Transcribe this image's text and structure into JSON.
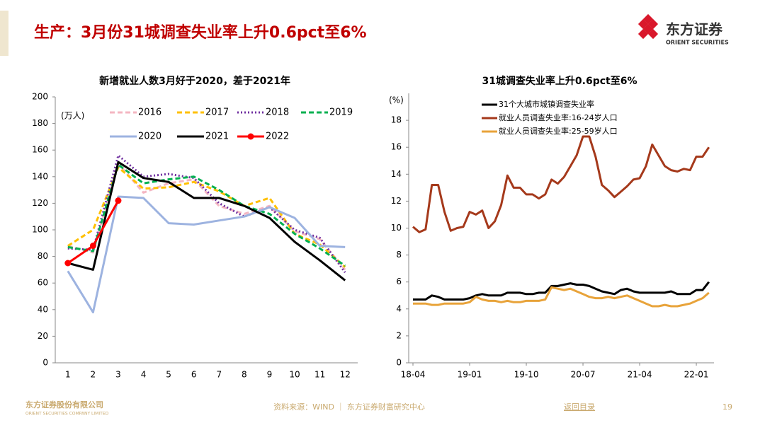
{
  "header": {
    "title": "生产：3月份31城调查失业率上升0.6pct至6%",
    "logo_name": "东方证券",
    "logo_subtitle": "ORIENT SECURITIES"
  },
  "chart_data": [
    {
      "type": "line",
      "title": "新增就业人数3月好于2020，差于2021年",
      "annotation": "(万人)",
      "categories": [
        1,
        2,
        3,
        4,
        5,
        6,
        7,
        8,
        9,
        10,
        11,
        12
      ],
      "ylim": [
        0,
        200
      ],
      "yticks": [
        0,
        20,
        40,
        60,
        80,
        100,
        120,
        140,
        160,
        180,
        200
      ],
      "series": [
        {
          "name": "2016",
          "color": "#f4b6c2",
          "line_style": "dashed",
          "values": [
            88,
            83,
            150,
            128,
            135,
            138,
            118,
            112,
            118,
            99,
            93,
            70
          ]
        },
        {
          "name": "2017",
          "color": "#ffc000",
          "line_style": "dashed",
          "values": [
            88,
            100,
            147,
            131,
            132,
            136,
            129,
            118,
            124,
            97,
            89,
            72
          ]
        },
        {
          "name": "2018",
          "color": "#7030a0",
          "line_style": "dotted",
          "values": [
            86,
            85,
            156,
            140,
            142,
            139,
            120,
            110,
            117,
            100,
            94,
            68
          ]
        },
        {
          "name": "2019",
          "color": "#00b050",
          "line_style": "dashed",
          "values": [
            87,
            84,
            149,
            135,
            138,
            140,
            130,
            118,
            112,
            97,
            86,
            73
          ]
        },
        {
          "name": "2020",
          "color": "#9db3e0",
          "line_style": "solid",
          "values": [
            69,
            38,
            125,
            124,
            105,
            104,
            107,
            110,
            117,
            109,
            88,
            87
          ]
        },
        {
          "name": "2021",
          "color": "#000000",
          "line_style": "solid",
          "values": [
            75,
            70,
            151,
            139,
            136,
            124,
            124,
            118,
            109,
            91,
            77,
            62
          ]
        },
        {
          "name": "2022",
          "color": "#ff0000",
          "line_style": "solid",
          "marker": true,
          "values": [
            75,
            88,
            122,
            null,
            null,
            null,
            null,
            null,
            null,
            null,
            null,
            null
          ]
        }
      ]
    },
    {
      "type": "line",
      "title": "31城调查失业率上升0.6pct至6%",
      "annotation": "(%)",
      "categories": [
        "18-04",
        null,
        null,
        null,
        null,
        null,
        null,
        null,
        null,
        "19-01",
        null,
        null,
        null,
        null,
        null,
        null,
        null,
        null,
        "19-10",
        null,
        null,
        null,
        null,
        null,
        null,
        null,
        null,
        "20-07",
        null,
        null,
        null,
        null,
        null,
        null,
        null,
        null,
        "21-04",
        null,
        null,
        null,
        null,
        null,
        null,
        null,
        null,
        "22-01",
        null,
        null
      ],
      "ylim": [
        0,
        20
      ],
      "yticks": [
        0,
        2,
        4,
        6,
        8,
        10,
        12,
        14,
        16,
        18
      ],
      "series": [
        {
          "name": "31个大城市城镇调查失业率",
          "color": "#000000",
          "values": [
            4.7,
            4.7,
            4.7,
            5.0,
            4.9,
            4.7,
            4.7,
            4.7,
            4.7,
            4.8,
            5.0,
            5.1,
            5.0,
            5.0,
            5.0,
            5.2,
            5.2,
            5.2,
            5.1,
            5.1,
            5.2,
            5.2,
            5.7,
            5.7,
            5.8,
            5.9,
            5.8,
            5.8,
            5.7,
            5.5,
            5.3,
            5.2,
            5.1,
            5.4,
            5.5,
            5.3,
            5.2,
            5.2,
            5.2,
            5.2,
            5.2,
            5.3,
            5.1,
            5.1,
            5.1,
            5.4,
            5.4,
            6.0
          ]
        },
        {
          "name": "就业人员调查失业率:16-24岁人口",
          "color": "#a5391b",
          "values": [
            10.1,
            9.7,
            9.9,
            13.2,
            13.2,
            11.2,
            9.8,
            10.0,
            10.1,
            11.2,
            11.0,
            11.3,
            10.0,
            10.5,
            11.7,
            13.9,
            13.0,
            13.0,
            12.5,
            12.5,
            12.2,
            12.5,
            13.6,
            13.3,
            13.8,
            14.6,
            15.4,
            16.8,
            16.8,
            15.3,
            13.2,
            12.8,
            12.3,
            12.7,
            13.1,
            13.6,
            13.7,
            14.6,
            16.2,
            15.4,
            14.6,
            14.3,
            14.2,
            14.4,
            14.3,
            15.3,
            15.3,
            16.0
          ]
        },
        {
          "name": "就业人员调查失业率:25-59岁人口",
          "color": "#e8a33a",
          "values": [
            4.4,
            4.4,
            4.4,
            4.3,
            4.3,
            4.4,
            4.4,
            4.4,
            4.4,
            4.5,
            4.9,
            4.7,
            4.6,
            4.6,
            4.5,
            4.6,
            4.5,
            4.5,
            4.6,
            4.6,
            4.6,
            4.7,
            5.6,
            5.5,
            5.4,
            5.5,
            5.3,
            5.1,
            4.9,
            4.8,
            4.8,
            4.9,
            4.8,
            4.9,
            5.0,
            4.8,
            4.6,
            4.4,
            4.2,
            4.2,
            4.3,
            4.2,
            4.2,
            4.3,
            4.4,
            4.6,
            4.8,
            5.2
          ]
        }
      ]
    }
  ],
  "footer": {
    "company": "东方证券股份有限公司",
    "company_en": "ORIENT SECURITIES COMPANY LIMITED",
    "source": "资料来源：WIND ｜ 东方证券财富研究中心",
    "back_link": "返回目录",
    "page_number": 19
  }
}
